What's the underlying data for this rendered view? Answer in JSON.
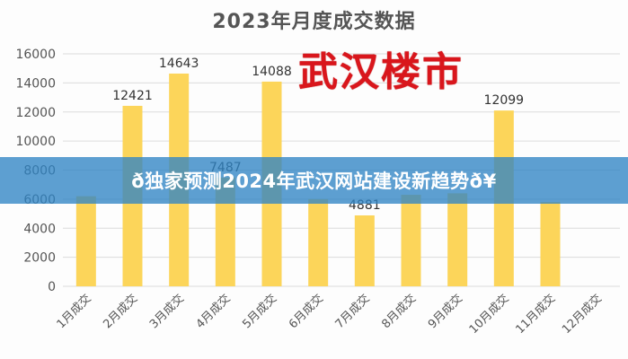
{
  "chart_data": {
    "type": "bar",
    "title": "2023年月度成交数据",
    "categories": [
      "1月成交",
      "2月成交",
      "3月成交",
      "4月成交",
      "5月成交",
      "6月成交",
      "7月成交",
      "8月成交",
      "9月成交",
      "10月成交",
      "11月成交",
      "12月成交"
    ],
    "values": [
      6200,
      12421,
      14643,
      7487,
      14088,
      6000,
      4881,
      6300,
      6400,
      12099,
      5800,
      null
    ],
    "labeled_values": [
      "",
      "12421",
      "14643",
      "7487",
      "14088",
      "",
      "4881",
      "",
      "",
      "12099",
      "",
      ""
    ],
    "yticks": [
      "0",
      "2000",
      "4000",
      "6000",
      "8000",
      "10000",
      "12000",
      "14000",
      "16000"
    ],
    "ylim": [
      0,
      16000
    ],
    "grid": true,
    "bar_color": "#fcd55a"
  },
  "overlay": {
    "brand_text": "武汉楼市",
    "brand_color": "#d9161c"
  },
  "banner": {
    "text": "ð独家预测2024年武汉网站建设新趋势ð¥"
  }
}
